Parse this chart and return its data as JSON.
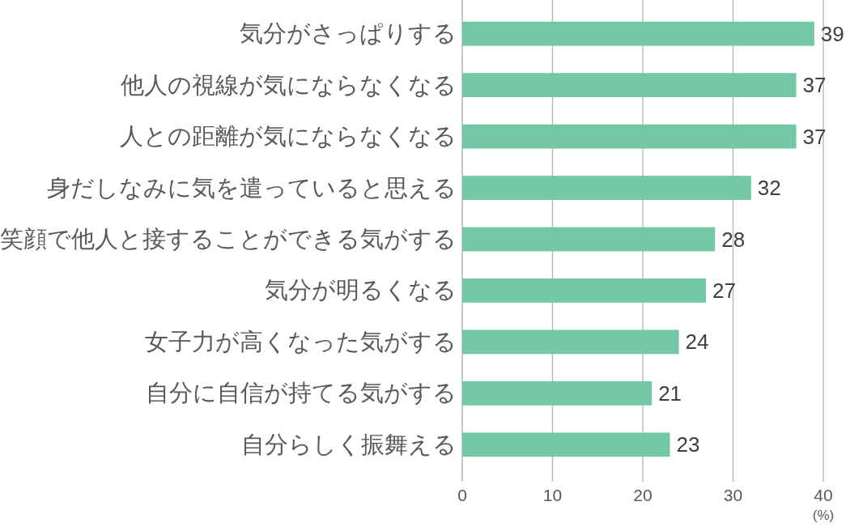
{
  "chart_data": {
    "type": "bar",
    "orientation": "horizontal",
    "categories": [
      "気分がさっぱりする",
      "他人の視線が気にならなくなる",
      "人との距離が気にならなくなる",
      "身だしなみに気を遣っていると思える",
      "笑顔で他人と接することができる気がする",
      "気分が明るくなる",
      "女子力が高くなった気がする",
      "自分に自信が持てる気がする",
      "自分らしく振舞える"
    ],
    "values": [
      39,
      37,
      37,
      32,
      28,
      27,
      24,
      21,
      23
    ],
    "data_labels": true,
    "color": "#73c8a6",
    "xlim": [
      0,
      40
    ],
    "xticks": [
      0,
      10,
      20,
      30,
      40
    ],
    "xlabel": "(%)",
    "grid": "x"
  }
}
